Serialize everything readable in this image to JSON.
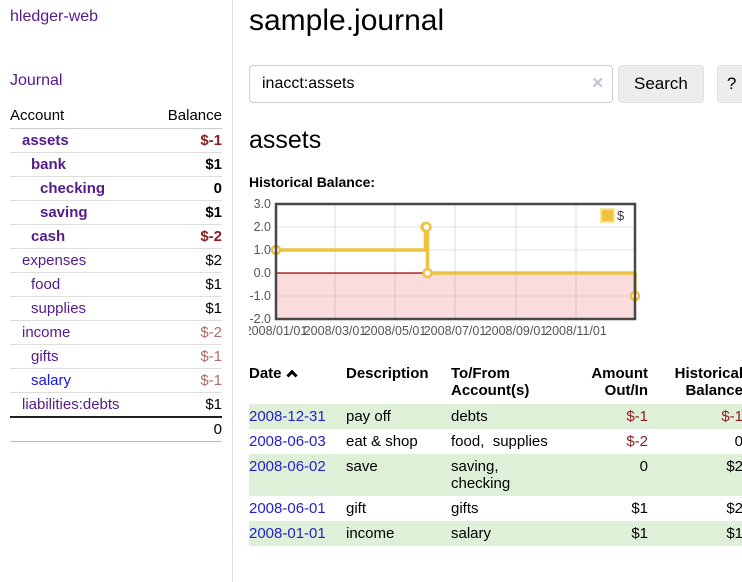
{
  "sidebar": {
    "brand": "hledger-web",
    "nav": {
      "journal": "Journal"
    },
    "accounts": {
      "col_account": "Account",
      "col_balance": "Balance",
      "rows": [
        {
          "label": "assets",
          "indent": 1,
          "bold": true,
          "link_color": "purple",
          "balance": "$-1",
          "negative": true
        },
        {
          "label": "bank",
          "indent": 2,
          "bold": true,
          "link_color": "purple",
          "balance": "$1",
          "negative": false
        },
        {
          "label": "checking",
          "indent": 3,
          "bold": true,
          "link_color": "purple",
          "balance": "0",
          "negative": false
        },
        {
          "label": "saving",
          "indent": 3,
          "bold": true,
          "link_color": "purple",
          "balance": "$1",
          "negative": false
        },
        {
          "label": "cash",
          "indent": 2,
          "bold": true,
          "link_color": "purple",
          "balance": "$-2",
          "negative": true
        },
        {
          "label": "expenses",
          "indent": 1,
          "bold": false,
          "link_color": "purple",
          "balance": "$2",
          "negative": false
        },
        {
          "label": "food",
          "indent": 2,
          "bold": false,
          "link_color": "purple",
          "balance": "$1",
          "negative": false
        },
        {
          "label": "supplies",
          "indent": 2,
          "bold": false,
          "link_color": "purple",
          "balance": "$1",
          "negative": false
        },
        {
          "label": "income",
          "indent": 1,
          "bold": false,
          "link_color": "purple",
          "balance": "$-2",
          "negative": true
        },
        {
          "label": "gifts",
          "indent": 2,
          "bold": false,
          "link_color": "purple",
          "balance": "$-1",
          "negative": true
        },
        {
          "label": "salary",
          "indent": 2,
          "bold": false,
          "link_color": "blue",
          "balance": "$-1",
          "negative": true
        },
        {
          "label": "liabilities:debts",
          "indent": 1,
          "bold": false,
          "link_color": "purple",
          "balance": "$1",
          "negative": false
        }
      ],
      "total": "0"
    }
  },
  "main": {
    "title": "sample.journal",
    "search": {
      "value": "inacct:assets",
      "clear_icon": "✕",
      "button": "Search",
      "help_button": "?"
    },
    "account_heading": "assets",
    "chart_heading": "Historical Balance:"
  },
  "chart_data": {
    "type": "line",
    "step": true,
    "title": "Historical Balance:",
    "series": [
      {
        "name": "$",
        "color": "#edc240",
        "x": [
          "2008-01-01",
          "2008-06-01",
          "2008-06-02",
          "2008-06-03",
          "2008-12-31"
        ],
        "values": [
          1,
          2,
          2,
          0,
          -1
        ]
      }
    ],
    "xlim": [
      "2008-01-01",
      "2008-12-31"
    ],
    "ylim": [
      -2,
      3
    ],
    "yticks": [
      3.0,
      2.0,
      1.0,
      0.0,
      -1.0,
      -2.0
    ],
    "ytick_labels": [
      "3.0",
      "2.0",
      "1.0",
      "0.0",
      "-1.0",
      "-2.0"
    ],
    "xticks": [
      "2008-01-01",
      "2008-03-01",
      "2008-05-01",
      "2008-07-01",
      "2008-09-01",
      "2008-11-01"
    ],
    "xtick_labels": [
      "2008/01/01",
      "2008/03/01",
      "2008/05/01",
      "2008/07/01",
      "2008/09/01",
      "2008/11/01"
    ],
    "legend": [
      "$"
    ],
    "legend_position": "top-right",
    "grid": true,
    "grid_color": "#e0e0e0",
    "border_color": "#474747",
    "negative_region_fill": "#fadcdc",
    "zero_line_color": "#a00000",
    "marker": "open-circle",
    "tick_label_color": "#545454"
  },
  "register": {
    "columns": [
      "Date",
      "Description",
      "To/From Account(s)",
      "Amount Out/In",
      "Historical Balance"
    ],
    "rows": [
      {
        "date": "2008-12-31",
        "description": "pay off",
        "accounts": [
          "debts"
        ],
        "amount": "$-1",
        "amount_negative": true,
        "balance": "$-1",
        "balance_negative": true,
        "shade": true
      },
      {
        "date": "2008-06-03",
        "description": "eat & shop",
        "accounts": [
          "food",
          "supplies"
        ],
        "amount": "$-2",
        "amount_negative": true,
        "balance": "0",
        "balance_negative": false,
        "shade": false
      },
      {
        "date": "2008-06-02",
        "description": "save",
        "accounts": [
          "saving",
          "checking"
        ],
        "amount": "0",
        "amount_negative": false,
        "balance": "$2",
        "balance_negative": false,
        "shade": true
      },
      {
        "date": "2008-06-01",
        "description": "gift",
        "accounts": [
          "gifts"
        ],
        "amount": "$1",
        "amount_negative": false,
        "balance": "$2",
        "balance_negative": false,
        "shade": false
      },
      {
        "date": "2008-01-01",
        "description": "income",
        "accounts": [
          "salary"
        ],
        "amount": "$1",
        "amount_negative": false,
        "balance": "$1",
        "balance_negative": false,
        "shade": true
      }
    ]
  },
  "colors": {
    "link_purple": "#551a8b",
    "link_blue": "#1515ee",
    "date_blue": "#2222cc",
    "negative_strong": "#8f1d1d",
    "negative_muted": "#b06a6a",
    "row_shade_green": "#dff0d8",
    "series_gold": "#edc240",
    "negative_region_pink": "#fadcdc"
  }
}
